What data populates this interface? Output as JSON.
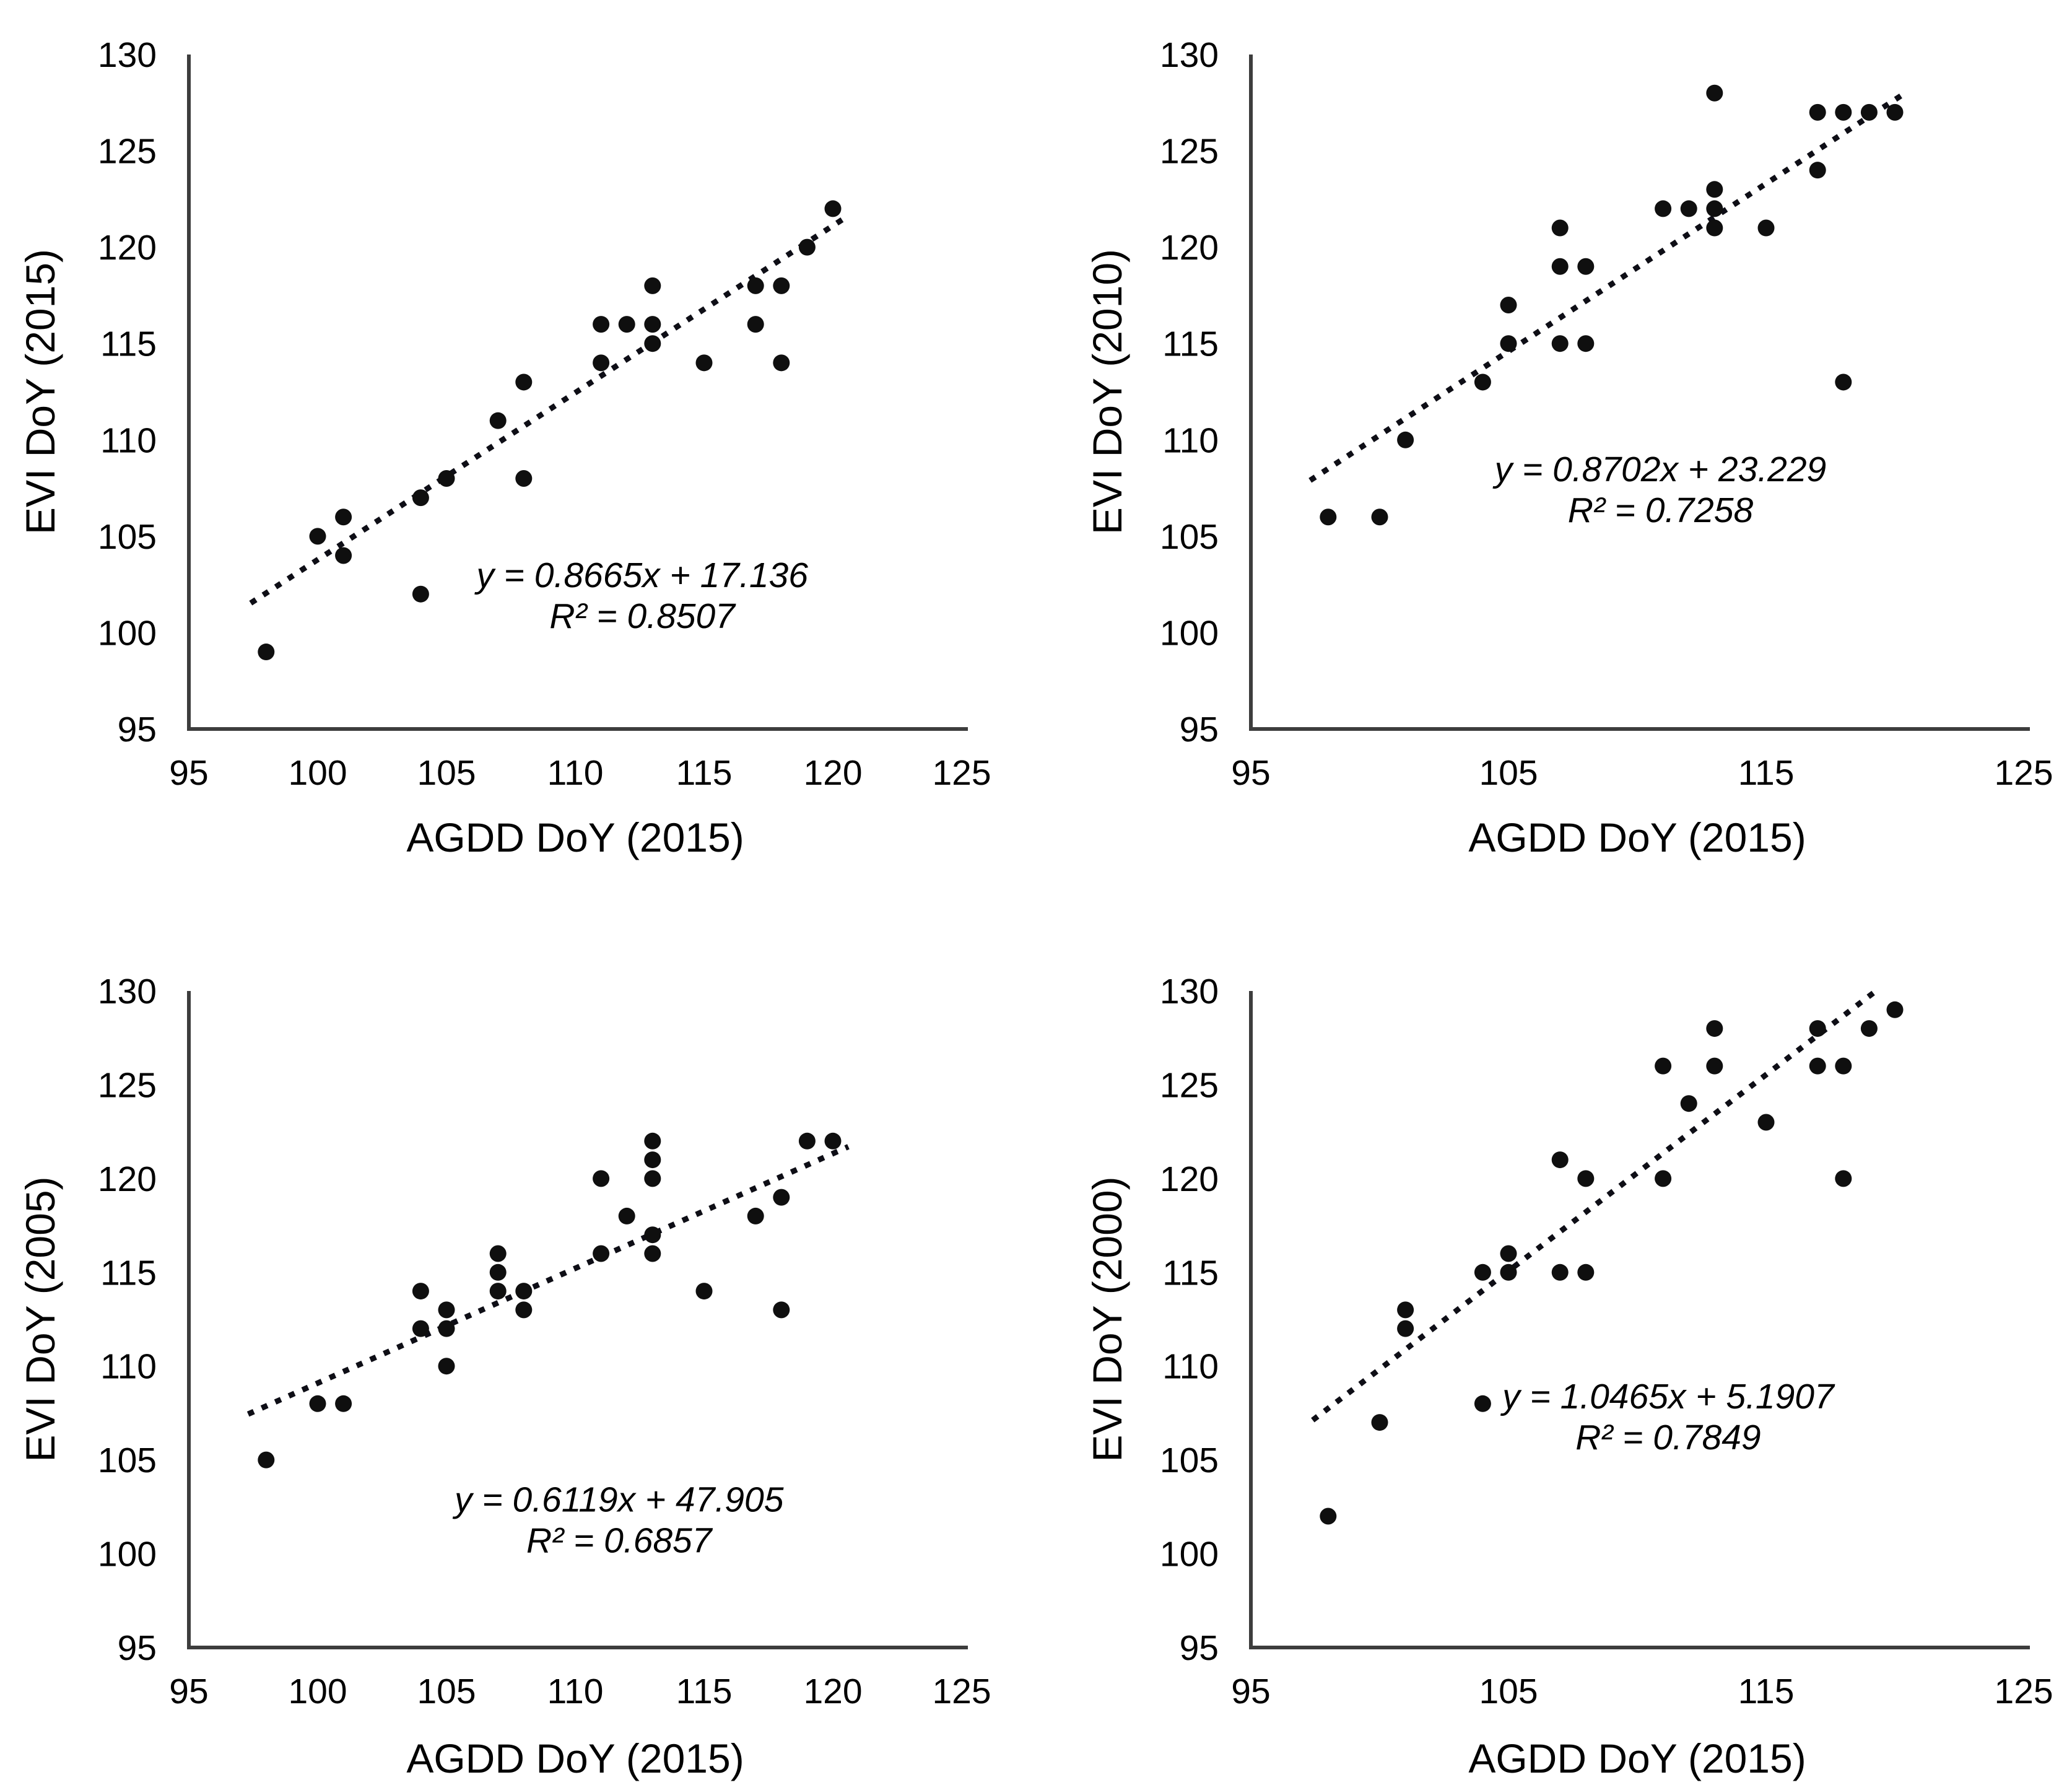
{
  "figure": {
    "description": "Four scatter plots comparing EVI DoY of different years against AGDD DoY (2015)",
    "background": "#ffffff"
  },
  "style": {
    "dot_color": "#0f0f0f",
    "trend_color": "#0e0e16",
    "axis_color": "#3d3d3d",
    "text_color": "#000000"
  },
  "chart_data": [
    {
      "type": "scatter",
      "xlabel": "AGDD DoY (2015)",
      "ylabel": "EVI DoY (2015)",
      "xlim": [
        95,
        125
      ],
      "ylim": [
        95,
        130
      ],
      "x_ticks": [
        95,
        100,
        105,
        110,
        115,
        120,
        125
      ],
      "y_ticks": [
        95,
        100,
        105,
        110,
        115,
        120,
        125,
        130
      ],
      "grid": false,
      "points": [
        [
          98,
          99
        ],
        [
          100,
          105
        ],
        [
          101,
          106
        ],
        [
          101,
          104
        ],
        [
          104,
          107
        ],
        [
          104,
          102
        ],
        [
          105,
          108
        ],
        [
          107,
          111
        ],
        [
          108,
          113
        ],
        [
          108,
          108
        ],
        [
          111,
          116
        ],
        [
          111,
          114
        ],
        [
          112,
          116
        ],
        [
          113,
          118
        ],
        [
          113,
          116
        ],
        [
          113,
          115
        ],
        [
          115,
          114
        ],
        [
          117,
          118
        ],
        [
          117,
          116
        ],
        [
          118,
          118
        ],
        [
          118,
          114
        ],
        [
          119,
          120
        ],
        [
          120,
          122
        ]
      ],
      "trendline": {
        "style": "dotted",
        "slope": 0.8665,
        "intercept": 17.136,
        "x_range": [
          97.4,
          120.5
        ]
      },
      "equation_line1": "y = 0.8665x + 17.136",
      "equation_line2": "R² = 0.8507",
      "annotation_anchor": [
        112.6,
        103.0
      ]
    },
    {
      "type": "scatter",
      "xlabel": "AGDD DoY (2015)",
      "ylabel": "EVI DoY (2010)",
      "xlim": [
        95,
        125
      ],
      "ylim": [
        95,
        130
      ],
      "x_ticks": [
        95,
        105,
        115,
        125
      ],
      "y_ticks": [
        95,
        100,
        105,
        110,
        115,
        120,
        125,
        130
      ],
      "grid": false,
      "points": [
        [
          98,
          106
        ],
        [
          100,
          106
        ],
        [
          101,
          110
        ],
        [
          104,
          113
        ],
        [
          105,
          117
        ],
        [
          105,
          115
        ],
        [
          107,
          121
        ],
        [
          107,
          119
        ],
        [
          108,
          119
        ],
        [
          107,
          115
        ],
        [
          108,
          115
        ],
        [
          111,
          122
        ],
        [
          112,
          122
        ],
        [
          113,
          128
        ],
        [
          113,
          123
        ],
        [
          113,
          122
        ],
        [
          113,
          121
        ],
        [
          115,
          121
        ],
        [
          117,
          127
        ],
        [
          117,
          124
        ],
        [
          118,
          127
        ],
        [
          119,
          127
        ],
        [
          120,
          127
        ],
        [
          118,
          113
        ]
      ],
      "trendline": {
        "style": "dotted",
        "slope": 0.8702,
        "intercept": 23.229,
        "x_range": [
          97.3,
          120.4
        ]
      },
      "equation_line1": "y = 0.8702x + 23.229",
      "equation_line2": "R² = 0.7258",
      "annotation_anchor": [
        110.9,
        108.5
      ]
    },
    {
      "type": "scatter",
      "xlabel": "AGDD DoY (2015)",
      "ylabel": "EVI DoY (2005)",
      "xlim": [
        95,
        125
      ],
      "ylim": [
        95,
        130
      ],
      "x_ticks": [
        95,
        100,
        105,
        110,
        115,
        120,
        125
      ],
      "y_ticks": [
        95,
        100,
        105,
        110,
        115,
        120,
        125,
        130
      ],
      "grid": false,
      "points": [
        [
          98,
          105
        ],
        [
          100,
          108
        ],
        [
          101,
          108
        ],
        [
          104,
          114
        ],
        [
          104,
          112
        ],
        [
          105,
          113
        ],
        [
          105,
          112
        ],
        [
          105,
          110
        ],
        [
          107,
          116
        ],
        [
          107,
          115
        ],
        [
          107,
          114
        ],
        [
          108,
          114
        ],
        [
          108,
          113
        ],
        [
          111,
          120
        ],
        [
          111,
          116
        ],
        [
          112,
          118
        ],
        [
          113,
          122
        ],
        [
          113,
          121
        ],
        [
          113,
          120
        ],
        [
          113,
          117
        ],
        [
          113,
          116
        ],
        [
          115,
          114
        ],
        [
          117,
          118
        ],
        [
          118,
          119
        ],
        [
          118,
          113
        ],
        [
          119,
          122
        ],
        [
          120,
          122
        ]
      ],
      "trendline": {
        "style": "dotted",
        "slope": 0.6119,
        "intercept": 47.905,
        "x_range": [
          97.3,
          120.6
        ]
      },
      "equation_line1": "y = 0.6119x + 47.905",
      "equation_line2": "R² = 0.6857",
      "annotation_anchor": [
        111.7,
        102.9
      ]
    },
    {
      "type": "scatter",
      "xlabel": "AGDD DoY (2015)",
      "ylabel": "EVI DoY (2000)",
      "xlim": [
        95,
        125
      ],
      "ylim": [
        95,
        130
      ],
      "x_ticks": [
        95,
        105,
        115,
        125
      ],
      "y_ticks": [
        95,
        100,
        105,
        110,
        115,
        120,
        125,
        130
      ],
      "grid": false,
      "points": [
        [
          98,
          102
        ],
        [
          100,
          107
        ],
        [
          101,
          113
        ],
        [
          101,
          112
        ],
        [
          104,
          115
        ],
        [
          104,
          108
        ],
        [
          105,
          116
        ],
        [
          105,
          115
        ],
        [
          107,
          121
        ],
        [
          107,
          115
        ],
        [
          108,
          120
        ],
        [
          108,
          115
        ],
        [
          111,
          126
        ],
        [
          111,
          120
        ],
        [
          112,
          124
        ],
        [
          113,
          128
        ],
        [
          113,
          126
        ],
        [
          115,
          123
        ],
        [
          117,
          128
        ],
        [
          117,
          126
        ],
        [
          118,
          126
        ],
        [
          118,
          120
        ],
        [
          119,
          128
        ],
        [
          120,
          129
        ]
      ],
      "trendline": {
        "style": "dotted",
        "slope": 1.0465,
        "intercept": 5.1907,
        "x_range": [
          97.4,
          119.3
        ]
      },
      "equation_line1": "y = 1.0465x + 5.1907",
      "equation_line2": "R² = 0.7849",
      "annotation_anchor": [
        111.2,
        108.4
      ]
    }
  ]
}
